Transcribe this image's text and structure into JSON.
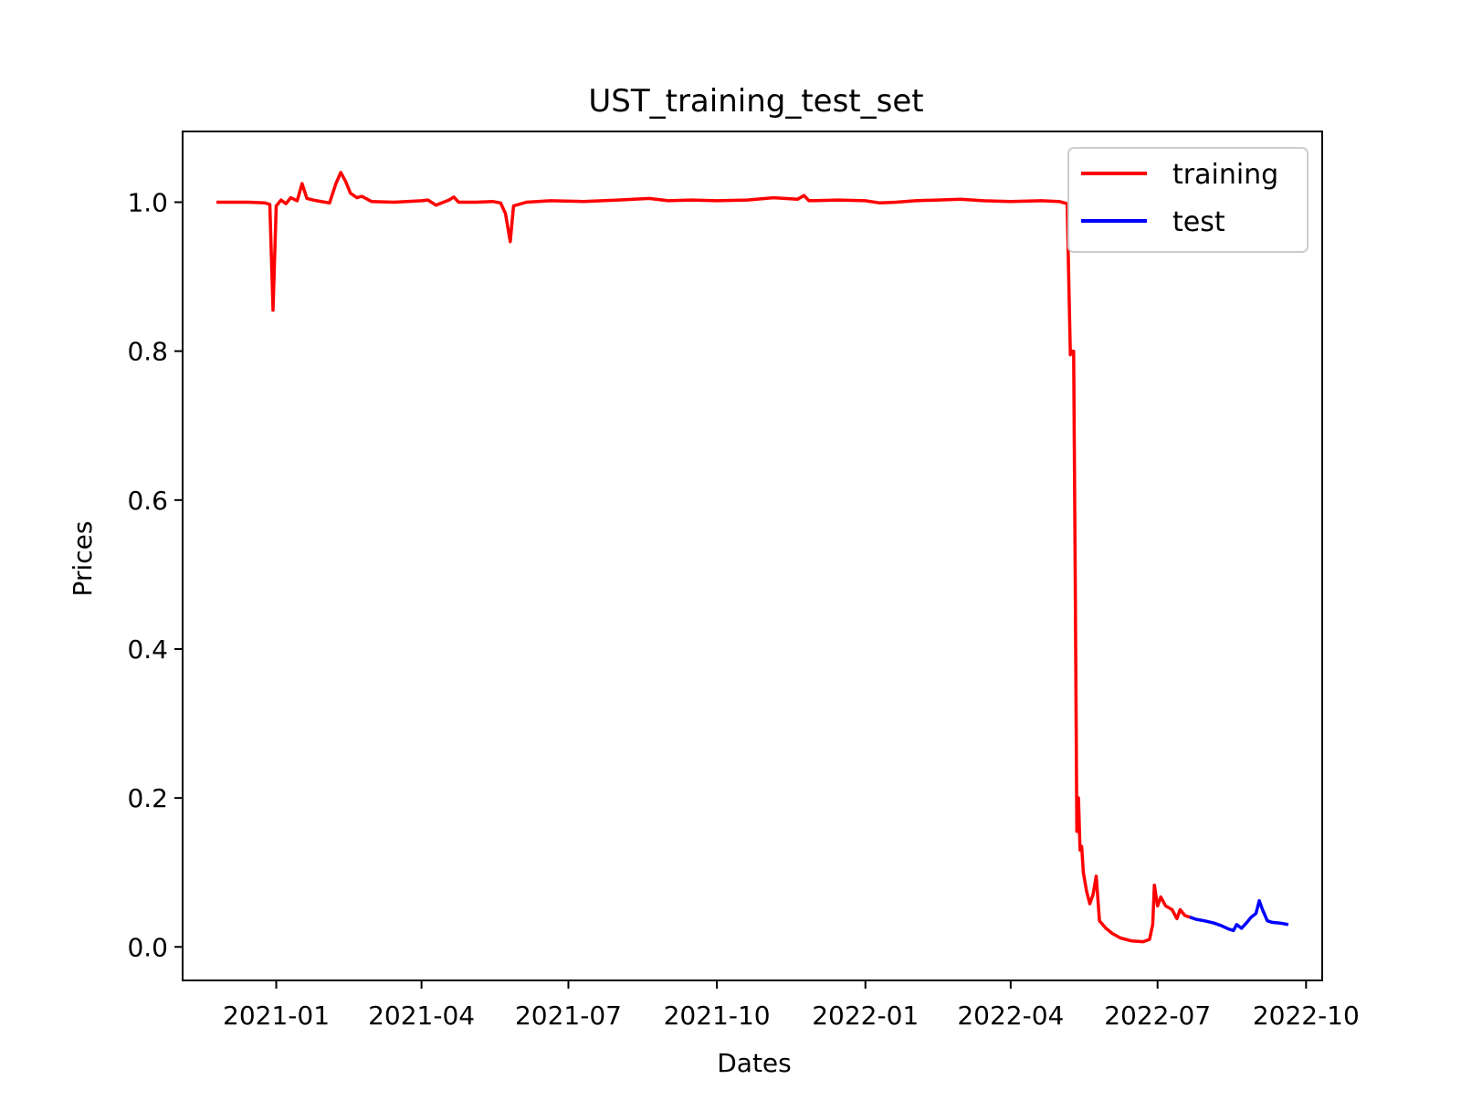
{
  "chart_data": {
    "type": "line",
    "title": "UST_training_test_set",
    "xlabel": "Dates",
    "ylabel": "Prices",
    "xlim": [
      "2020-11-04",
      "2022-10-11"
    ],
    "ylim": [
      -0.045,
      1.095
    ],
    "x_ticks": [
      "2021-01",
      "2021-04",
      "2021-07",
      "2021-10",
      "2022-01",
      "2022-04",
      "2022-07",
      "2022-10"
    ],
    "y_ticks": [
      "0.0",
      "0.2",
      "0.4",
      "0.6",
      "0.8",
      "1.0"
    ],
    "grid": false,
    "legend_position": "upper right",
    "series": [
      {
        "name": "training",
        "color": "#ff0000",
        "points": [
          [
            "2020-11-25",
            1.0
          ],
          [
            "2020-12-05",
            1.0
          ],
          [
            "2020-12-15",
            1.0
          ],
          [
            "2020-12-25",
            0.999
          ],
          [
            "2020-12-28",
            0.997
          ],
          [
            "2020-12-30",
            0.855
          ],
          [
            "2021-01-01",
            0.995
          ],
          [
            "2021-01-04",
            1.003
          ],
          [
            "2021-01-07",
            0.998
          ],
          [
            "2021-01-10",
            1.006
          ],
          [
            "2021-01-14",
            1.002
          ],
          [
            "2021-01-17",
            1.025
          ],
          [
            "2021-01-20",
            1.005
          ],
          [
            "2021-01-26",
            1.002
          ],
          [
            "2021-02-03",
            0.999
          ],
          [
            "2021-02-07",
            1.025
          ],
          [
            "2021-02-10",
            1.04
          ],
          [
            "2021-02-13",
            1.028
          ],
          [
            "2021-02-16",
            1.012
          ],
          [
            "2021-02-20",
            1.006
          ],
          [
            "2021-02-23",
            1.008
          ],
          [
            "2021-03-01",
            1.001
          ],
          [
            "2021-03-15",
            1.0
          ],
          [
            "2021-04-01",
            1.002
          ],
          [
            "2021-04-05",
            1.003
          ],
          [
            "2021-04-10",
            0.996
          ],
          [
            "2021-04-18",
            1.003
          ],
          [
            "2021-04-21",
            1.007
          ],
          [
            "2021-04-24",
            1.0
          ],
          [
            "2021-05-05",
            1.0
          ],
          [
            "2021-05-15",
            1.001
          ],
          [
            "2021-05-20",
            0.999
          ],
          [
            "2021-05-23",
            0.985
          ],
          [
            "2021-05-26",
            0.947
          ],
          [
            "2021-05-28",
            0.995
          ],
          [
            "2021-06-05",
            1.0
          ],
          [
            "2021-06-20",
            1.002
          ],
          [
            "2021-07-10",
            1.001
          ],
          [
            "2021-08-01",
            1.003
          ],
          [
            "2021-08-20",
            1.005
          ],
          [
            "2021-09-01",
            1.002
          ],
          [
            "2021-09-15",
            1.003
          ],
          [
            "2021-10-01",
            1.002
          ],
          [
            "2021-10-20",
            1.003
          ],
          [
            "2021-11-05",
            1.006
          ],
          [
            "2021-11-20",
            1.004
          ],
          [
            "2021-11-24",
            1.009
          ],
          [
            "2021-11-27",
            1.002
          ],
          [
            "2021-12-15",
            1.003
          ],
          [
            "2022-01-01",
            1.002
          ],
          [
            "2022-01-10",
            0.999
          ],
          [
            "2022-01-20",
            1.0
          ],
          [
            "2022-02-01",
            1.002
          ],
          [
            "2022-02-15",
            1.003
          ],
          [
            "2022-03-01",
            1.004
          ],
          [
            "2022-03-15",
            1.002
          ],
          [
            "2022-04-01",
            1.001
          ],
          [
            "2022-04-20",
            1.002
          ],
          [
            "2022-05-01",
            1.001
          ],
          [
            "2022-05-06",
            0.998
          ],
          [
            "2022-05-08",
            0.795
          ],
          [
            "2022-05-09",
            0.8
          ],
          [
            "2022-05-10",
            0.8
          ],
          [
            "2022-05-11",
            0.5
          ],
          [
            "2022-05-12",
            0.155
          ],
          [
            "2022-05-13",
            0.2
          ],
          [
            "2022-05-14",
            0.13
          ],
          [
            "2022-05-15",
            0.135
          ],
          [
            "2022-05-16",
            0.1
          ],
          [
            "2022-05-18",
            0.075
          ],
          [
            "2022-05-20",
            0.058
          ],
          [
            "2022-05-22",
            0.07
          ],
          [
            "2022-05-24",
            0.095
          ],
          [
            "2022-05-26",
            0.035
          ],
          [
            "2022-05-30",
            0.025
          ],
          [
            "2022-06-03",
            0.018
          ],
          [
            "2022-06-08",
            0.012
          ],
          [
            "2022-06-15",
            0.008
          ],
          [
            "2022-06-22",
            0.007
          ],
          [
            "2022-06-26",
            0.01
          ],
          [
            "2022-06-28",
            0.03
          ],
          [
            "2022-06-29",
            0.083
          ],
          [
            "2022-07-01",
            0.055
          ],
          [
            "2022-07-03",
            0.067
          ],
          [
            "2022-07-06",
            0.055
          ],
          [
            "2022-07-10",
            0.05
          ],
          [
            "2022-07-13",
            0.038
          ],
          [
            "2022-07-15",
            0.05
          ],
          [
            "2022-07-18",
            0.042
          ],
          [
            "2022-07-21",
            0.04
          ]
        ]
      },
      {
        "name": "test",
        "color": "#0000ff",
        "points": [
          [
            "2022-07-21",
            0.04
          ],
          [
            "2022-07-25",
            0.037
          ],
          [
            "2022-07-30",
            0.035
          ],
          [
            "2022-08-05",
            0.032
          ],
          [
            "2022-08-10",
            0.028
          ],
          [
            "2022-08-14",
            0.024
          ],
          [
            "2022-08-17",
            0.022
          ],
          [
            "2022-08-19",
            0.03
          ],
          [
            "2022-08-22",
            0.025
          ],
          [
            "2022-08-25",
            0.032
          ],
          [
            "2022-08-28",
            0.04
          ],
          [
            "2022-08-31",
            0.045
          ],
          [
            "2022-09-02",
            0.062
          ],
          [
            "2022-09-04",
            0.05
          ],
          [
            "2022-09-07",
            0.035
          ],
          [
            "2022-09-10",
            0.033
          ],
          [
            "2022-09-15",
            0.032
          ],
          [
            "2022-09-20",
            0.03
          ]
        ]
      }
    ]
  }
}
